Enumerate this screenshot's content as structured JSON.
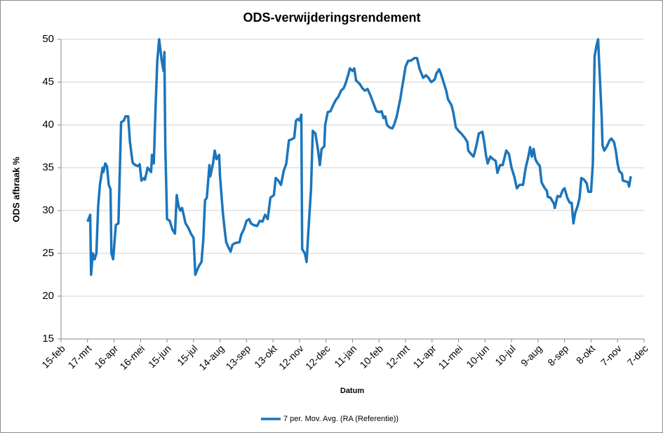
{
  "chart_data": {
    "type": "line",
    "title": "ODS-verwijderingsrendement",
    "x_label": "Datum",
    "y_label": "ODS afbraak %",
    "x": [
      30,
      33,
      34,
      36,
      38,
      40,
      42,
      44,
      47,
      48,
      50,
      52,
      54,
      56,
      57,
      59,
      62,
      65,
      68,
      71,
      73,
      76,
      78,
      81,
      84,
      87,
      89,
      91,
      94,
      95,
      98,
      102,
      103,
      105,
      107,
      109,
      111,
      114,
      116,
      117,
      118,
      120,
      123,
      126,
      129,
      131,
      133,
      135,
      137,
      141,
      144,
      147,
      150,
      152,
      156,
      159,
      161,
      163,
      165,
      168,
      169,
      172,
      174,
      176,
      179,
      180,
      183,
      185,
      187,
      189,
      192,
      194,
      197,
      202,
      204,
      207,
      210,
      213,
      215,
      218,
      222,
      225,
      228,
      231,
      234,
      237,
      241,
      243,
      246,
      249,
      252,
      255,
      258,
      261,
      264,
      266,
      268,
      270,
      272,
      273,
      276,
      278,
      280,
      283,
      285,
      288,
      291,
      293,
      295,
      298,
      299,
      302,
      305,
      308,
      311,
      314,
      317,
      320,
      322,
      325,
      327,
      330,
      332,
      334,
      338,
      341,
      344,
      347,
      350,
      353,
      357,
      360,
      363,
      365,
      367,
      369,
      372,
      375,
      377,
      380,
      384,
      386,
      388,
      390,
      393,
      396,
      400,
      403,
      406,
      408,
      410,
      413,
      416,
      419,
      423,
      425,
      428,
      430,
      433,
      436,
      438,
      442,
      444,
      447,
      450,
      453,
      457,
      460,
      461,
      465,
      467,
      470,
      473,
      477,
      479,
      481,
      483,
      486,
      489,
      492,
      494,
      497,
      500,
      504,
      507,
      510,
      513,
      516,
      519,
      523,
      526,
      529,
      531,
      533,
      535,
      537,
      539,
      542,
      544,
      547,
      550,
      551,
      554,
      558,
      559,
      562,
      565,
      568,
      570,
      573,
      576,
      578,
      580,
      582,
      585,
      587,
      589,
      592,
      595,
      597,
      600,
      602,
      604,
      606,
      608,
      610,
      612,
      613,
      615,
      618,
      621,
      623,
      626,
      628,
      630,
      632,
      635,
      636,
      639,
      642,
      643,
      645
    ],
    "series": [
      {
        "name": "7 per. Mov. Avg. (RA (Referentie))",
        "color": "#1b75bc",
        "values": [
          28.7,
          29.5,
          22.5,
          25,
          24.3,
          25,
          30.5,
          33,
          35,
          34.5,
          35.5,
          35.2,
          33,
          32.5,
          25,
          24.3,
          28.3,
          28.5,
          40.3,
          40.5,
          41,
          41,
          38,
          35.6,
          35.3,
          35.2,
          35.4,
          33.5,
          33.8,
          33.6,
          35,
          34.5,
          36.5,
          35.5,
          42,
          47.5,
          50,
          47.5,
          46.3,
          48.5,
          37.5,
          29,
          28.8,
          27.8,
          27.3,
          31.8,
          30.5,
          30,
          30.3,
          28.5,
          28,
          27.3,
          26.8,
          22.5,
          23.5,
          24,
          26.5,
          31.2,
          31.5,
          35.3,
          34,
          35.5,
          37,
          36,
          36.5,
          34,
          30,
          28,
          26.3,
          25.8,
          25.2,
          26,
          26.2,
          26.3,
          27.2,
          27.8,
          28.8,
          29,
          28.5,
          28.3,
          28.2,
          28.8,
          28.7,
          29.5,
          29,
          31.5,
          31.8,
          33.8,
          33.5,
          33,
          34.6,
          35.5,
          38.2,
          38.3,
          38.5,
          40.5,
          40.7,
          40.5,
          41.2,
          25.5,
          25,
          24,
          27.5,
          32.5,
          39.3,
          39,
          37,
          35.3,
          37.2,
          37.5,
          40,
          41.5,
          41.6,
          42.3,
          42.9,
          43.3,
          44,
          44.3,
          44.8,
          45.8,
          46.6,
          46.3,
          46.6,
          45.2,
          44.8,
          44.3,
          44,
          44.2,
          43.5,
          42.7,
          41.6,
          41.5,
          41.6,
          40.8,
          41,
          40,
          39.7,
          39.6,
          40,
          41,
          43,
          44.3,
          45.5,
          46.8,
          47.5,
          47.5,
          47.8,
          47.8,
          46.5,
          46,
          45.5,
          45.8,
          45.5,
          45,
          45.3,
          46,
          46.5,
          46,
          45,
          44,
          43,
          42.3,
          41.5,
          39.7,
          39.3,
          39,
          38.5,
          38,
          37,
          36.5,
          36.3,
          37.5,
          39,
          39.2,
          38,
          36.5,
          35.5,
          36.3,
          36,
          35.8,
          34.4,
          35.3,
          35.3,
          37,
          36.6,
          35,
          34,
          32.6,
          33,
          33,
          35,
          36.3,
          37.4,
          36.3,
          37.2,
          36,
          35.6,
          35.2,
          33.3,
          32.7,
          32.3,
          31.6,
          31.5,
          30.8,
          30.3,
          31.7,
          31.6,
          32.4,
          32.6,
          31.5,
          30.9,
          30.9,
          28.5,
          29.7,
          30.6,
          31.5,
          33.8,
          33.6,
          33.2,
          32.2,
          32.2,
          35.5,
          48,
          49.2,
          50,
          45.5,
          41,
          37.6,
          37,
          37.5,
          38.2,
          38.4,
          38,
          37,
          35.5,
          34.6,
          34.3,
          33.5,
          33.4,
          33.3,
          32.8,
          34
        ]
      }
    ],
    "xlim": [
      0,
      660
    ],
    "xticks": [
      {
        "value": 0,
        "label": "15-feb"
      },
      {
        "value": 30,
        "label": "17-mrt"
      },
      {
        "value": 60,
        "label": "16-apr"
      },
      {
        "value": 90,
        "label": "16-mei"
      },
      {
        "value": 120,
        "label": "15-jun"
      },
      {
        "value": 150,
        "label": "15-jul"
      },
      {
        "value": 180,
        "label": "14-aug"
      },
      {
        "value": 210,
        "label": "13-sep"
      },
      {
        "value": 240,
        "label": "13-okt"
      },
      {
        "value": 270,
        "label": "12-nov"
      },
      {
        "value": 300,
        "label": "12-dec"
      },
      {
        "value": 330,
        "label": "11-jan"
      },
      {
        "value": 360,
        "label": "10-feb"
      },
      {
        "value": 390,
        "label": "12-mrt"
      },
      {
        "value": 420,
        "label": "11-apr"
      },
      {
        "value": 450,
        "label": "11-mei"
      },
      {
        "value": 480,
        "label": "10-jun"
      },
      {
        "value": 510,
        "label": "10-jul"
      },
      {
        "value": 540,
        "label": "9-aug"
      },
      {
        "value": 570,
        "label": "8-sep"
      },
      {
        "value": 600,
        "label": "8-okt"
      },
      {
        "value": 630,
        "label": "7-nov"
      },
      {
        "value": 660,
        "label": "7-dec"
      }
    ],
    "ylim": [
      15,
      50
    ],
    "yticks": [
      15,
      20,
      25,
      30,
      35,
      40,
      45,
      50
    ],
    "grid": true,
    "legend": "bottom"
  }
}
